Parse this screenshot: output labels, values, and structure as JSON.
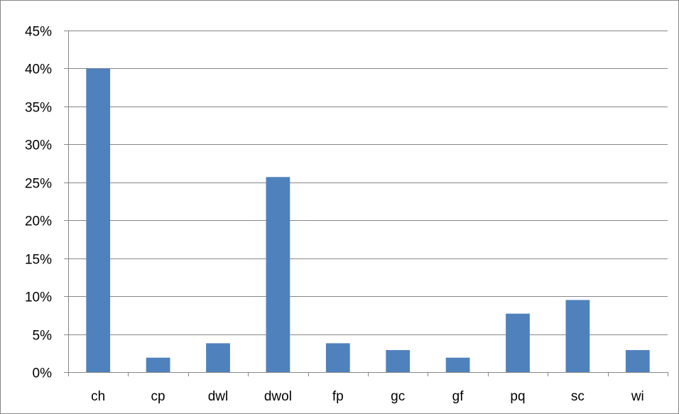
{
  "chart_data": {
    "type": "bar",
    "categories": [
      "ch",
      "cp",
      "dwl",
      "dwol",
      "fp",
      "gc",
      "gf",
      "pq",
      "sc",
      "wi"
    ],
    "values": [
      40.0,
      1.9,
      3.8,
      25.7,
      3.8,
      2.9,
      1.9,
      7.7,
      9.5,
      2.9
    ],
    "y_ticks": [
      "0%",
      "5%",
      "10%",
      "15%",
      "20%",
      "25%",
      "30%",
      "35%",
      "40%",
      "45%"
    ],
    "ylim": [
      0,
      45
    ],
    "y_unit": "%",
    "grid": true,
    "legend": "none",
    "bar_color": "#4F81BD",
    "grid_color": "#868686"
  }
}
